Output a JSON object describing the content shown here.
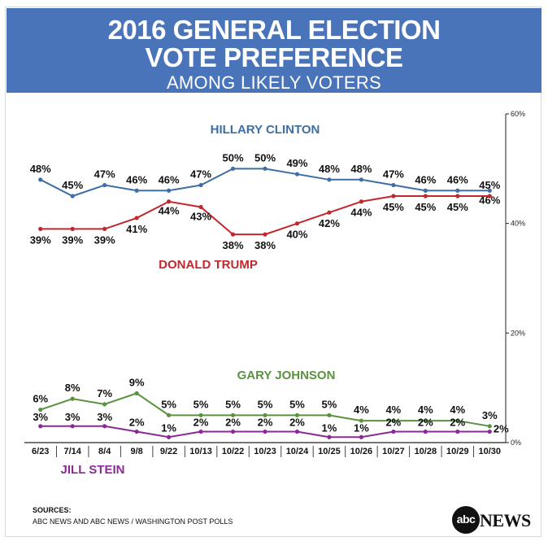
{
  "header": {
    "title_line1": "2016 GENERAL ELECTION",
    "title_line2": "VOTE PREFERENCE",
    "subtitle": "AMONG LIKELY VOTERS"
  },
  "footer": {
    "sources_label": "SOURCES:",
    "sources_text": "ABC NEWS AND ABC NEWS / WASHINGTON POST POLLS"
  },
  "logo": {
    "mark_text": "abc",
    "word_text": "NEWS"
  },
  "chart_data": {
    "type": "line",
    "categories": [
      "6/23",
      "7/14",
      "8/4",
      "9/8",
      "9/22",
      "10/13",
      "10/22",
      "10/23",
      "10/24",
      "10/25",
      "10/26",
      "10/27",
      "10/28",
      "10/29",
      "10/30"
    ],
    "ylim": [
      0,
      60
    ],
    "y_ticks": [
      0,
      20,
      40,
      60
    ],
    "y_tick_labels": [
      "0%",
      "20%",
      "40%",
      "60%"
    ],
    "y_axis_position": "right",
    "grid": false,
    "series": [
      {
        "name": "HILLARY CLINTON",
        "color": "#3e6ea3",
        "values": [
          48,
          45,
          47,
          46,
          46,
          47,
          50,
          50,
          49,
          48,
          48,
          47,
          46,
          46,
          46
        ],
        "point_labels": [
          "48%",
          "45%",
          "47%",
          "46%",
          "46%",
          "47%",
          "50%",
          "50%",
          "49%",
          "48%",
          "48%",
          "47%",
          "46%",
          "46%",
          "46%"
        ]
      },
      {
        "name": "DONALD TRUMP",
        "color": "#c0282d",
        "values": [
          39,
          39,
          39,
          41,
          44,
          43,
          38,
          38,
          40,
          42,
          44,
          45,
          45,
          45,
          45
        ],
        "point_labels": [
          "39%",
          "39%",
          "39%",
          "41%",
          "44%",
          "43%",
          "38%",
          "38%",
          "40%",
          "42%",
          "44%",
          "45%",
          "45%",
          "45%",
          "45%"
        ]
      },
      {
        "name": "GARY JOHNSON",
        "color": "#5a9240",
        "values": [
          6,
          8,
          7,
          9,
          5,
          5,
          5,
          5,
          5,
          5,
          4,
          4,
          4,
          4,
          3
        ],
        "point_labels": [
          "6%",
          "8%",
          "7%",
          "9%",
          "5%",
          "5%",
          "5%",
          "5%",
          "5%",
          "5%",
          "4%",
          "4%",
          "4%",
          "4%",
          "3%"
        ]
      },
      {
        "name": "JILL STEIN",
        "color": "#8a2a94",
        "values": [
          3,
          3,
          3,
          2,
          1,
          2,
          2,
          2,
          2,
          1,
          1,
          2,
          2,
          2,
          2
        ],
        "point_labels": [
          "3%",
          "3%",
          "3%",
          "2%",
          "1%",
          "2%",
          "2%",
          "2%",
          "2%",
          "1%",
          "1%",
          "2%",
          "2%",
          "2%",
          "2%"
        ]
      }
    ]
  }
}
